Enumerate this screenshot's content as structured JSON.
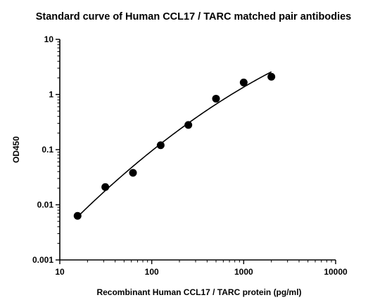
{
  "chart_data": {
    "type": "scatter",
    "title": "Standard curve of Human CCL17 / TARC matched pair antibodies",
    "xlabel": "Recombinant Human CCL17 / TARC protein (pg/ml)",
    "ylabel": "OD450",
    "xscale": "log",
    "yscale": "log",
    "xlim": [
      10,
      10000
    ],
    "ylim": [
      0.001,
      10
    ],
    "x_ticks": [
      "10",
      "100",
      "1000",
      "10000"
    ],
    "y_ticks": [
      "0.001",
      "0.01",
      "0.1",
      "1",
      "10"
    ],
    "grid": false,
    "series": [
      {
        "x": [
          15.6,
          31.25,
          62.5,
          125,
          250,
          500,
          1000,
          2000
        ],
        "y": [
          0.0063,
          0.021,
          0.038,
          0.12,
          0.28,
          0.84,
          1.65,
          2.1
        ]
      }
    ],
    "fit_curve": true,
    "colors": {
      "points": "#000000",
      "curve": "#000000",
      "axes": "#000000"
    }
  }
}
